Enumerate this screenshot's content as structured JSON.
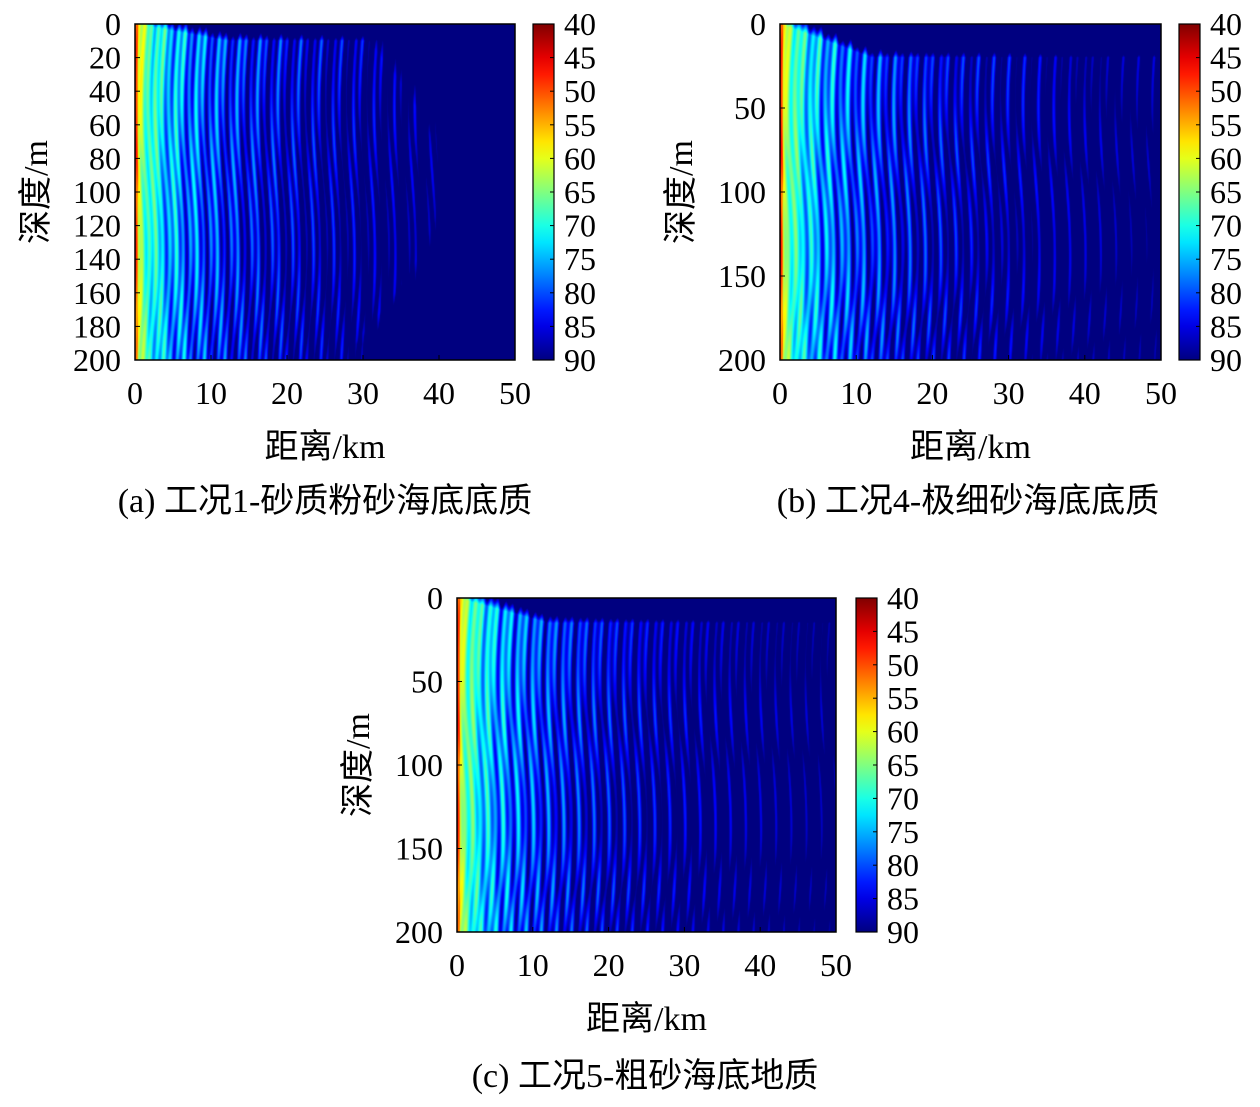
{
  "chart_data": [
    {
      "type": "heatmap",
      "panel": "a",
      "caption": "(a) 工况1-砂质粉砂海底底质",
      "title": "",
      "xlabel": "距离/km",
      "ylabel": "深度/m",
      "xlim": [
        0,
        50
      ],
      "ylim": [
        0,
        200
      ],
      "y_inverted": true,
      "xticks": [
        0,
        10,
        20,
        30,
        40,
        50
      ],
      "yticks": [
        0,
        20,
        40,
        60,
        80,
        100,
        120,
        140,
        160,
        180,
        200
      ],
      "colorbar": {
        "ticks": [
          40,
          45,
          50,
          55,
          60,
          65,
          70,
          75,
          80,
          85,
          90
        ],
        "range": [
          40,
          90
        ],
        "colormap": "jet-reversed"
      },
      "field": {
        "value_range": [
          40,
          90
        ],
        "interference_periods_km": [
          0.9,
          2.6
        ],
        "fade_limit_km": 40,
        "fade_shape": "dome",
        "fade_min_depth_m": 10
      }
    },
    {
      "type": "heatmap",
      "panel": "b",
      "caption": "(b) 工况4-极细砂海底底质",
      "title": "",
      "xlabel": "距离/km",
      "ylabel": "深度/m",
      "xlim": [
        0,
        50
      ],
      "ylim": [
        0,
        200
      ],
      "y_inverted": true,
      "xticks": [
        0,
        10,
        20,
        30,
        40,
        50
      ],
      "yticks": [
        0,
        50,
        100,
        150,
        200
      ],
      "colorbar": {
        "ticks": [
          40,
          45,
          50,
          55,
          60,
          65,
          70,
          75,
          80,
          85,
          90
        ],
        "range": [
          40,
          90
        ],
        "colormap": "jet-reversed"
      },
      "field": {
        "value_range": [
          40,
          90
        ],
        "interference_periods_km": [
          1.0,
          2.1
        ],
        "fade_limit_km": 55,
        "fade_shape": "flat",
        "fade_min_depth_m": 20
      }
    },
    {
      "type": "heatmap",
      "panel": "c",
      "caption": "(c) 工况5-粗砂海底地质",
      "title": "",
      "xlabel": "距离/km",
      "ylabel": "深度/m",
      "xlim": [
        0,
        50
      ],
      "ylim": [
        0,
        200
      ],
      "y_inverted": true,
      "xticks": [
        0,
        10,
        20,
        30,
        40,
        50
      ],
      "yticks": [
        0,
        50,
        100,
        150,
        200
      ],
      "colorbar": {
        "ticks": [
          40,
          45,
          50,
          55,
          60,
          65,
          70,
          75,
          80,
          85,
          90
        ],
        "range": [
          40,
          90
        ],
        "colormap": "jet-reversed"
      },
      "field": {
        "value_range": [
          40,
          90
        ],
        "interference_periods_km": [
          1.0,
          2.0
        ],
        "fade_limit_km": 65,
        "fade_shape": "flat",
        "fade_min_depth_m": 15
      }
    }
  ]
}
